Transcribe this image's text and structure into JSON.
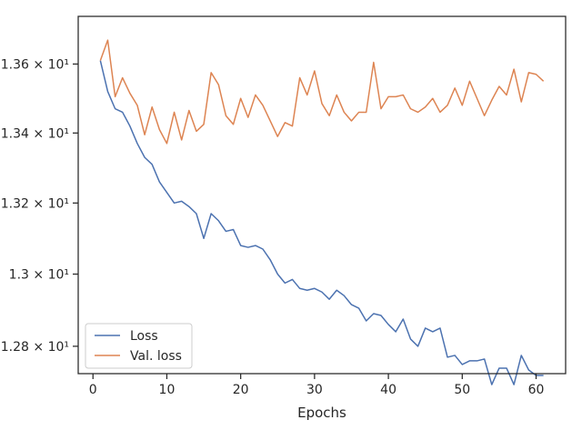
{
  "chart_data": {
    "type": "line",
    "xlabel": "Epochs",
    "ylabel": "",
    "title": "",
    "xlim": [
      -2,
      64
    ],
    "ylim": [
      12.725,
      13.74
    ],
    "y_scale": "log",
    "grid": false,
    "legend_position": "lower-left",
    "x_ticks": [
      {
        "value": 0,
        "label": "0"
      },
      {
        "value": 10,
        "label": "10"
      },
      {
        "value": 20,
        "label": "20"
      },
      {
        "value": 30,
        "label": "30"
      },
      {
        "value": 40,
        "label": "40"
      },
      {
        "value": 50,
        "label": "50"
      },
      {
        "value": 60,
        "label": "60"
      }
    ],
    "y_ticks": [
      {
        "value": 12.8,
        "label": "1.28 × 10¹"
      },
      {
        "value": 13.0,
        "label": "1.3 × 10¹"
      },
      {
        "value": 13.2,
        "label": "1.32 × 10¹"
      },
      {
        "value": 13.4,
        "label": "1.34 × 10¹"
      },
      {
        "value": 13.6,
        "label": "1.36 × 10¹"
      }
    ],
    "x": [
      1,
      2,
      3,
      4,
      5,
      6,
      7,
      8,
      9,
      10,
      11,
      12,
      13,
      14,
      15,
      16,
      17,
      18,
      19,
      20,
      21,
      22,
      23,
      24,
      25,
      26,
      27,
      28,
      29,
      30,
      31,
      32,
      33,
      34,
      35,
      36,
      37,
      38,
      39,
      40,
      41,
      42,
      43,
      44,
      45,
      46,
      47,
      48,
      49,
      50,
      51,
      52,
      53,
      54,
      55,
      56,
      57,
      58,
      59,
      60,
      61
    ],
    "series": [
      {
        "name": "Loss",
        "color": "#4c72b0",
        "values": [
          13.61,
          13.52,
          13.47,
          13.46,
          13.42,
          13.37,
          13.33,
          13.31,
          13.26,
          13.23,
          13.2,
          13.205,
          13.19,
          13.17,
          13.1,
          13.17,
          13.15,
          13.12,
          13.125,
          13.08,
          13.075,
          13.08,
          13.07,
          13.04,
          13.0,
          12.975,
          12.985,
          12.96,
          12.955,
          12.96,
          12.95,
          12.93,
          12.955,
          12.94,
          12.915,
          12.905,
          12.87,
          12.89,
          12.885,
          12.86,
          12.84,
          12.875,
          12.82,
          12.8,
          12.85,
          12.84,
          12.85,
          12.77,
          12.775,
          12.75,
          12.76,
          12.76,
          12.765,
          12.695,
          12.74,
          12.74,
          12.695,
          12.775,
          12.735,
          12.72,
          12.72
        ]
      },
      {
        "name": "Val. loss",
        "color": "#dd8452",
        "values": [
          13.61,
          13.67,
          13.505,
          13.56,
          13.515,
          13.48,
          13.395,
          13.475,
          13.41,
          13.37,
          13.46,
          13.38,
          13.465,
          13.405,
          13.425,
          13.575,
          13.54,
          13.45,
          13.425,
          13.5,
          13.445,
          13.51,
          13.48,
          13.435,
          13.39,
          13.43,
          13.42,
          13.56,
          13.51,
          13.58,
          13.485,
          13.45,
          13.51,
          13.46,
          13.435,
          13.46,
          13.46,
          13.605,
          13.47,
          13.505,
          13.505,
          13.51,
          13.47,
          13.46,
          13.475,
          13.5,
          13.46,
          13.48,
          13.53,
          13.48,
          13.55,
          13.5,
          13.45,
          13.495,
          13.535,
          13.51,
          13.585,
          13.49,
          13.575,
          13.57,
          13.55
        ]
      }
    ]
  }
}
